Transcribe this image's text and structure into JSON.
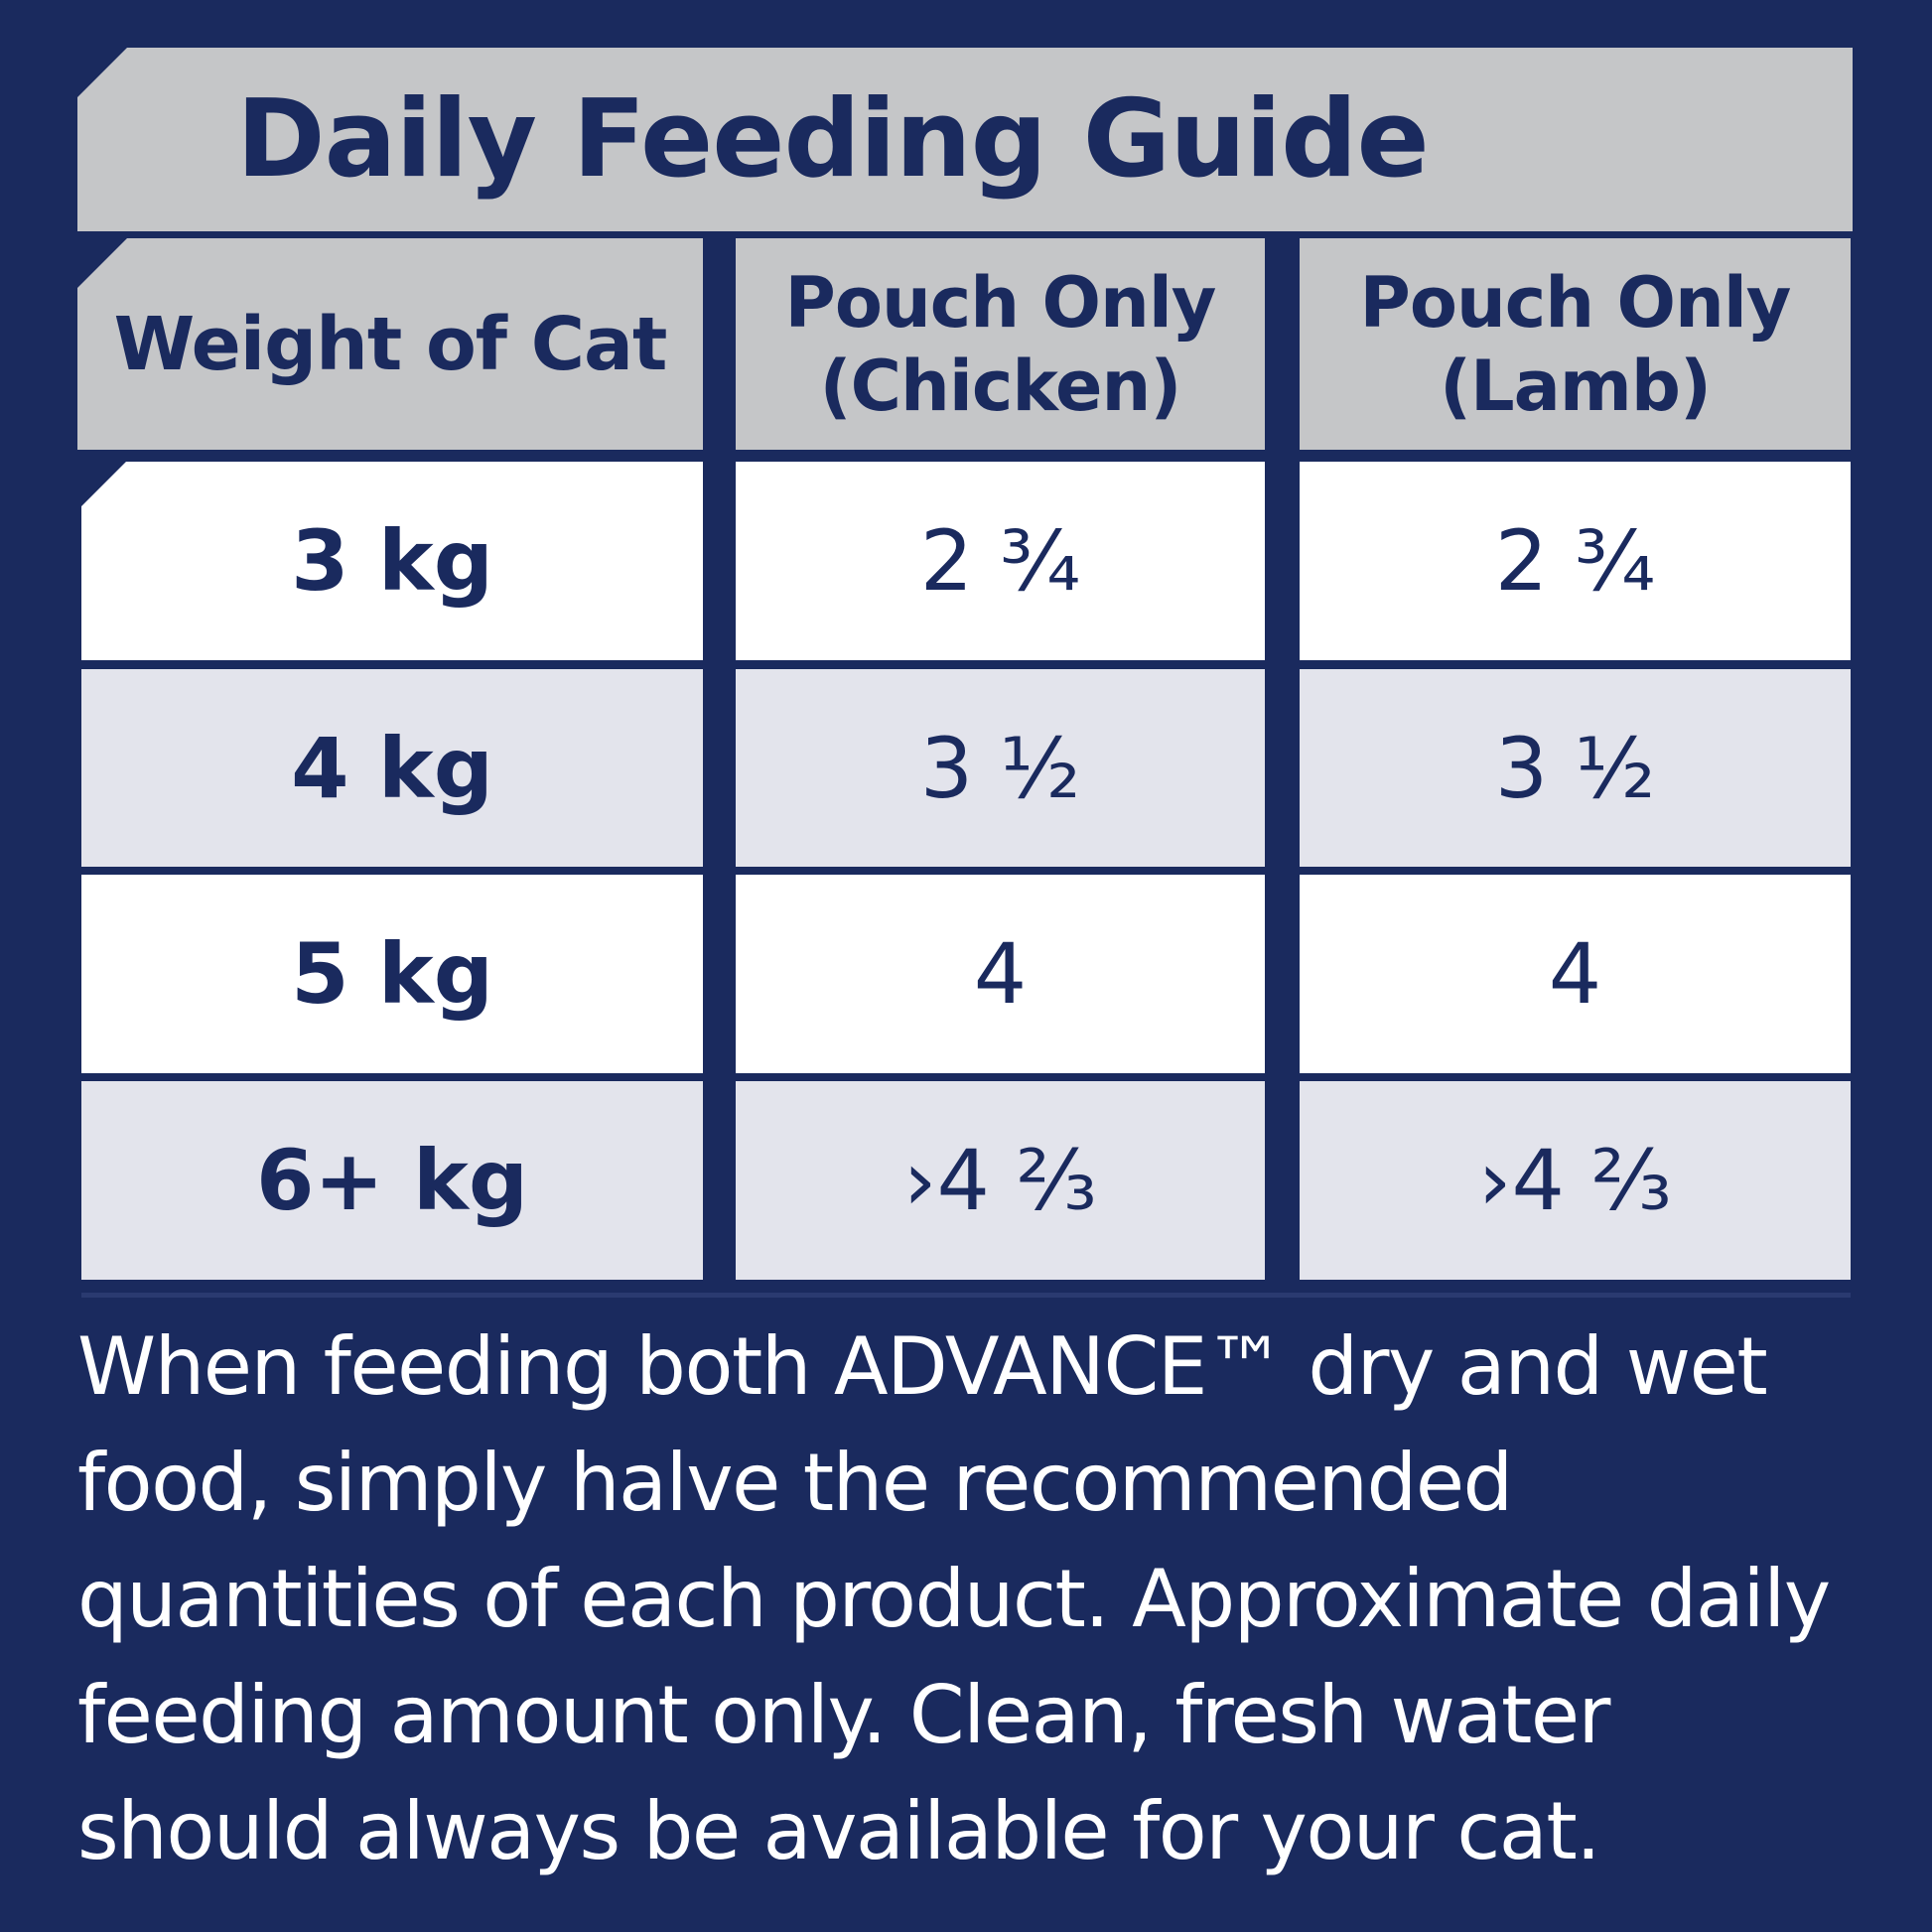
{
  "title": "Daily Feeding Guide",
  "table": {
    "headers": [
      [
        "Weight of Cat"
      ],
      [
        "Pouch Only",
        "(Chicken)"
      ],
      [
        "Pouch Only",
        "(Lamb)"
      ]
    ],
    "rows": [
      {
        "weight": "3 kg",
        "chicken": "2 ¾",
        "lamb": "2 ¾"
      },
      {
        "weight": "4 kg",
        "chicken": "3 ½",
        "lamb": "3 ½"
      },
      {
        "weight": "5 kg",
        "chicken": "4",
        "lamb": "4"
      },
      {
        "weight": "6+ kg",
        "chicken": "›4 ⅔",
        "lamb": "›4 ⅔"
      }
    ]
  },
  "note": "When feeding both ADVANCE™ dry and wet food, simply halve the recommended quantities of each product.  Approximate daily feeding amount only.  Clean, fresh water should always be available for your cat.",
  "colors": {
    "navy": "#1a2a5e",
    "header_grey": "#c5c6c8",
    "row_white": "#ffffff",
    "row_grey": "#e3e4ec"
  }
}
